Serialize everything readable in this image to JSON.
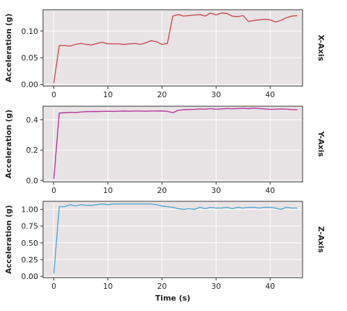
{
  "figure": {
    "xlabel": "Time (s)",
    "panel_background": "#e8e3e5",
    "grid_color": "#ffffff",
    "axis_color": "#333333"
  },
  "chart_data": [
    {
      "type": "line",
      "panel_label": "X-Axis",
      "ylabel": "Acceleration (g)",
      "xlabel": "",
      "xlim": [
        -2,
        46
      ],
      "ylim": [
        -0.003,
        0.14
      ],
      "xticks": [
        0,
        10,
        20,
        30,
        40
      ],
      "yticks": [
        0.0,
        0.05,
        0.1
      ],
      "ytick_labels": [
        "0.00",
        "0.05",
        "0.10"
      ],
      "grid": true,
      "series": [
        {
          "color": "#c9484f",
          "x": [
            0,
            1,
            2,
            3,
            4,
            5,
            6,
            7,
            8,
            9,
            10,
            11,
            12,
            13,
            14,
            15,
            16,
            17,
            18,
            19,
            20,
            21,
            22,
            23,
            24,
            25,
            26,
            27,
            28,
            29,
            30,
            31,
            32,
            33,
            34,
            35,
            36,
            37,
            38,
            39,
            40,
            41,
            42,
            43,
            44,
            45
          ],
          "y": [
            0.003,
            0.073,
            0.073,
            0.072,
            0.075,
            0.077,
            0.075,
            0.074,
            0.077,
            0.079,
            0.076,
            0.076,
            0.076,
            0.075,
            0.076,
            0.077,
            0.075,
            0.078,
            0.082,
            0.08,
            0.075,
            0.077,
            0.128,
            0.131,
            0.128,
            0.129,
            0.13,
            0.131,
            0.128,
            0.134,
            0.13,
            0.134,
            0.133,
            0.128,
            0.127,
            0.129,
            0.118,
            0.12,
            0.121,
            0.122,
            0.121,
            0.117,
            0.12,
            0.125,
            0.128,
            0.129
          ]
        }
      ]
    },
    {
      "type": "line",
      "panel_label": "Y-Axis",
      "ylabel": "Acceleration (g)",
      "xlabel": "",
      "xlim": [
        -2,
        46
      ],
      "ylim": [
        -0.01,
        0.49
      ],
      "xticks": [
        0,
        10,
        20,
        30,
        40
      ],
      "yticks": [
        0.0,
        0.2,
        0.4
      ],
      "ytick_labels": [
        "0.0",
        "0.2",
        "0.4"
      ],
      "grid": true,
      "series": [
        {
          "color": "#b7329a",
          "x": [
            0,
            1,
            2,
            3,
            4,
            5,
            6,
            7,
            8,
            9,
            10,
            11,
            12,
            13,
            14,
            15,
            16,
            17,
            18,
            19,
            20,
            21,
            22,
            23,
            24,
            25,
            26,
            27,
            28,
            29,
            30,
            31,
            32,
            33,
            34,
            35,
            36,
            37,
            38,
            39,
            40,
            41,
            42,
            43,
            44,
            45
          ],
          "y": [
            0.01,
            0.445,
            0.447,
            0.449,
            0.448,
            0.452,
            0.454,
            0.455,
            0.455,
            0.456,
            0.457,
            0.456,
            0.457,
            0.458,
            0.457,
            0.458,
            0.458,
            0.457,
            0.458,
            0.458,
            0.459,
            0.456,
            0.447,
            0.463,
            0.467,
            0.468,
            0.469,
            0.472,
            0.47,
            0.474,
            0.47,
            0.472,
            0.475,
            0.473,
            0.475,
            0.476,
            0.474,
            0.477,
            0.475,
            0.472,
            0.469,
            0.47,
            0.472,
            0.471,
            0.468,
            0.467
          ]
        }
      ]
    },
    {
      "type": "line",
      "panel_label": "Z-Axis",
      "ylabel": "Acceleration (g)",
      "xlabel": "Time (s)",
      "xlim": [
        -2,
        46
      ],
      "ylim": [
        -0.02,
        1.12
      ],
      "xticks": [
        0,
        10,
        20,
        30,
        40
      ],
      "yticks": [
        0.0,
        0.25,
        0.5,
        0.75,
        1.0
      ],
      "ytick_labels": [
        "0.00",
        "0.25",
        "0.50",
        "0.75",
        "1.00"
      ],
      "grid": true,
      "series": [
        {
          "color": "#4aa6d1",
          "x": [
            0,
            1,
            2,
            3,
            4,
            5,
            6,
            7,
            8,
            9,
            10,
            11,
            12,
            13,
            14,
            15,
            16,
            17,
            18,
            19,
            20,
            21,
            22,
            23,
            24,
            25,
            26,
            27,
            28,
            29,
            30,
            31,
            32,
            33,
            34,
            35,
            36,
            37,
            38,
            39,
            40,
            41,
            42,
            43,
            44,
            45
          ],
          "y": [
            0.04,
            1.04,
            1.04,
            1.07,
            1.05,
            1.07,
            1.06,
            1.06,
            1.07,
            1.08,
            1.07,
            1.08,
            1.08,
            1.08,
            1.08,
            1.08,
            1.08,
            1.08,
            1.08,
            1.07,
            1.05,
            1.04,
            1.03,
            1.01,
            1.0,
            1.01,
            1.0,
            1.03,
            1.01,
            1.03,
            1.02,
            1.02,
            1.03,
            1.01,
            1.03,
            1.02,
            1.03,
            1.03,
            1.02,
            1.03,
            1.03,
            1.02,
            1.0,
            1.03,
            1.02,
            1.02
          ]
        }
      ]
    }
  ]
}
